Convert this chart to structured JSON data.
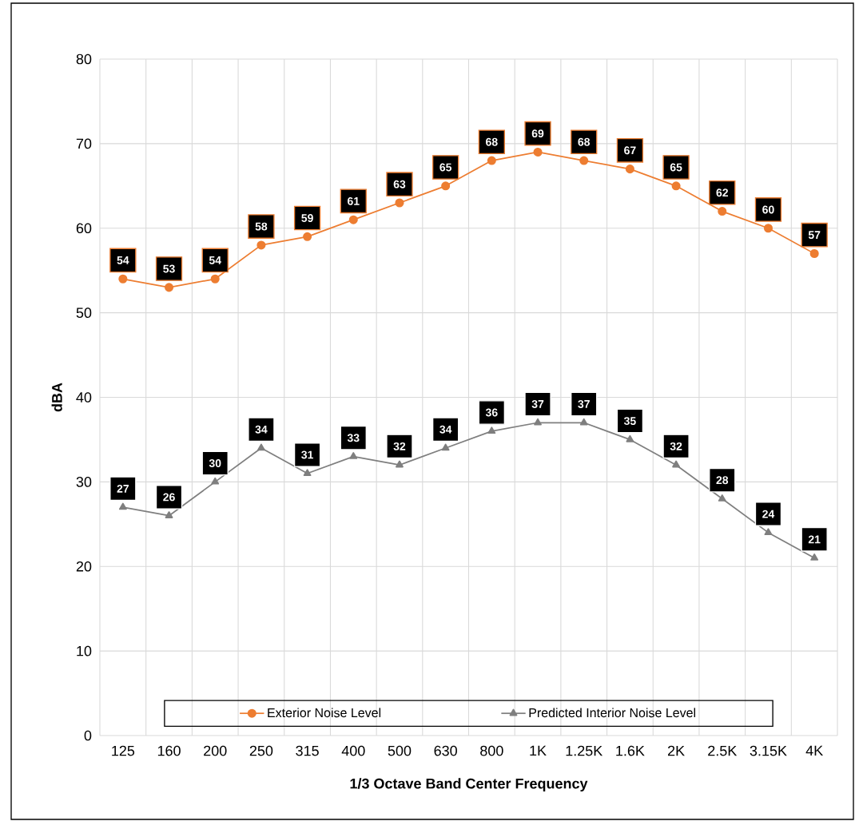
{
  "chart_data": {
    "type": "line",
    "xlabel": "1/3 Octave Band Center Frequency",
    "ylabel": "dBA",
    "categories": [
      "125",
      "160",
      "200",
      "250",
      "315",
      "400",
      "500",
      "630",
      "800",
      "1K",
      "1.25K",
      "1.6K",
      "2K",
      "2.5K",
      "3.15K",
      "4K"
    ],
    "series": [
      {
        "name": "Exterior Noise Level",
        "color": "#ed7d31",
        "marker": "circle",
        "values": [
          54,
          53,
          54,
          58,
          59,
          61,
          63,
          65,
          68,
          69,
          68,
          67,
          65,
          62,
          60,
          57
        ]
      },
      {
        "name": "Predicted Interior Noise Level",
        "color": "#7f7f7f",
        "marker": "triangle",
        "values": [
          27,
          26,
          30,
          34,
          31,
          33,
          32,
          34,
          36,
          37,
          37,
          35,
          32,
          28,
          24,
          21
        ]
      }
    ],
    "ylim": [
      0,
      80
    ],
    "yticks": [
      0,
      10,
      20,
      30,
      40,
      50,
      60,
      70,
      80
    ],
    "grid": true,
    "legend": "bottom",
    "data_labels": true
  }
}
